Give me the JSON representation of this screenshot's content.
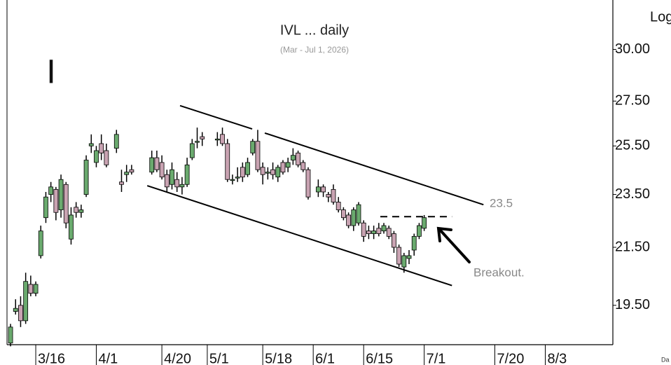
{
  "chart_data": {
    "type": "candlestick",
    "title": "IVL ... daily",
    "subtitle": "(Mar - Jul 1, 2026)",
    "symbol": "I",
    "scale_label": "Log",
    "corner_label": "Da",
    "log_scale": true,
    "up_color": "#6aaa6e",
    "down_color": "#c9a3b2",
    "xlim": [
      -0.7,
      119.4
    ],
    "xticks": [
      {
        "value": 5,
        "label": "3/16"
      },
      {
        "value": 17,
        "label": "4/1"
      },
      {
        "value": 30,
        "label": "4/20"
      },
      {
        "value": 39,
        "label": "5/1"
      },
      {
        "value": 50,
        "label": "5/18"
      },
      {
        "value": 60,
        "label": "6/1"
      },
      {
        "value": 70,
        "label": "6/15"
      },
      {
        "value": 82,
        "label": "7/1"
      },
      {
        "value": 96,
        "label": "7/20"
      },
      {
        "value": 106,
        "label": "8/3"
      }
    ],
    "ylim": [
      18.25,
      32.6
    ],
    "yticks": [
      {
        "value": 19.5,
        "label": "19.50"
      },
      {
        "value": 21.5,
        "label": "21.50"
      },
      {
        "value": 23.5,
        "label": "23.50"
      },
      {
        "value": 25.5,
        "label": "25.50"
      },
      {
        "value": 27.5,
        "label": "27.50"
      },
      {
        "value": 30,
        "label": "30.00"
      }
    ],
    "x": [
      0,
      1,
      2,
      3,
      4,
      5,
      6,
      7,
      8,
      9,
      10,
      11,
      12,
      13,
      14,
      15,
      16,
      17,
      18,
      19,
      21,
      22,
      23,
      24,
      28,
      29,
      30,
      31,
      32,
      33,
      34,
      35,
      36,
      37,
      38,
      41,
      42,
      43,
      44,
      45,
      46,
      47,
      48,
      49,
      50,
      51,
      52,
      53,
      54,
      55,
      56,
      57,
      58,
      59,
      61,
      62,
      63,
      64,
      65,
      66,
      67,
      68,
      69,
      70,
      71,
      72,
      73,
      74,
      75,
      76,
      77,
      78,
      79,
      80,
      81,
      82
    ],
    "open": [
      18.3,
      19.3,
      19.5,
      19.0,
      20.2,
      19.9,
      21.2,
      22.6,
      23.5,
      23.7,
      22.9,
      23.9,
      21.8,
      23.0,
      22.8,
      23.5,
      25.5,
      24.8,
      25.6,
      25.3,
      25.4,
      24.0,
      24.3,
      24.5,
      24.4,
      25.0,
      24.8,
      24.3,
      23.9,
      24.1,
      23.8,
      23.9,
      25.0,
      25.7,
      25.9,
      25.8,
      26.0,
      25.6,
      24.1,
      24.2,
      24.6,
      24.3,
      25.2,
      25.7,
      24.6,
      24.4,
      24.5,
      24.2,
      24.8,
      24.6,
      24.9,
      25.2,
      24.8,
      24.5,
      23.6,
      23.8,
      23.5,
      23.7,
      23.2,
      22.9,
      22.7,
      22.3,
      22.4,
      22.4,
      22.1,
      22.0,
      22.2,
      22.1,
      22.2,
      22.0,
      21.5,
      20.8,
      21.1,
      21.4,
      21.9,
      22.2
    ],
    "high": [
      18.9,
      19.7,
      19.8,
      20.6,
      20.5,
      20.3,
      22.3,
      23.6,
      24.0,
      23.8,
      24.3,
      24.0,
      23.0,
      23.2,
      23.1,
      25.1,
      26.0,
      25.5,
      26.0,
      25.6,
      26.2,
      24.5,
      24.7,
      24.7,
      25.3,
      25.3,
      25.1,
      24.5,
      24.8,
      24.4,
      24.2,
      25.0,
      25.8,
      26.3,
      26.1,
      26.1,
      26.3,
      25.8,
      24.3,
      24.6,
      24.8,
      25.0,
      25.8,
      26.2,
      24.8,
      24.6,
      24.8,
      24.7,
      24.9,
      25.0,
      25.4,
      25.3,
      24.9,
      24.6,
      24.1,
      23.9,
      23.6,
      23.9,
      23.4,
      23.0,
      22.8,
      23.0,
      23.2,
      22.5,
      22.3,
      22.3,
      22.4,
      22.4,
      22.3,
      22.1,
      21.6,
      21.3,
      21.4,
      22.0,
      22.4,
      22.7
    ],
    "low": [
      18.2,
      19.2,
      18.8,
      18.9,
      19.8,
      19.8,
      21.1,
      22.4,
      23.2,
      22.5,
      22.6,
      22.2,
      21.6,
      22.6,
      22.6,
      23.4,
      25.2,
      24.6,
      24.9,
      24.6,
      25.2,
      23.6,
      24.0,
      24.3,
      24.3,
      24.4,
      24.1,
      23.6,
      23.7,
      23.6,
      23.5,
      23.8,
      24.9,
      25.4,
      25.5,
      25.5,
      25.5,
      24.0,
      23.9,
      24.0,
      24.0,
      24.2,
      25.1,
      24.4,
      23.9,
      24.1,
      24.1,
      24.0,
      24.3,
      24.4,
      24.7,
      24.6,
      24.4,
      23.3,
      23.4,
      23.4,
      23.2,
      23.1,
      22.8,
      22.5,
      22.2,
      22.1,
      22.3,
      21.7,
      21.8,
      21.8,
      21.9,
      22.0,
      21.8,
      21.3,
      20.8,
      20.6,
      20.9,
      21.2,
      21.8,
      22.1
    ],
    "close": [
      18.8,
      19.4,
      19.0,
      20.3,
      19.9,
      20.2,
      22.1,
      23.4,
      23.8,
      22.8,
      24.1,
      22.4,
      22.7,
      22.8,
      22.9,
      24.9,
      25.6,
      25.3,
      25.2,
      24.7,
      26.0,
      23.9,
      24.4,
      24.4,
      25.0,
      24.5,
      24.2,
      23.8,
      24.5,
      23.8,
      23.9,
      24.7,
      25.6,
      25.7,
      25.8,
      25.8,
      25.6,
      24.1,
      24.1,
      24.2,
      24.2,
      24.8,
      25.7,
      24.5,
      24.3,
      24.4,
      24.3,
      24.6,
      24.4,
      24.8,
      25.1,
      24.7,
      24.5,
      23.4,
      23.8,
      23.6,
      23.4,
      23.2,
      22.9,
      22.6,
      22.3,
      22.9,
      23.1,
      21.9,
      22.0,
      22.1,
      22.0,
      22.3,
      21.9,
      21.5,
      20.9,
      21.2,
      21.2,
      21.9,
      22.3,
      22.6
    ],
    "trendlines": [
      {
        "x": [
          33.6,
          47.9
        ],
        "y": [
          27.29,
          26.24
        ],
        "dashed": false
      },
      {
        "x": [
          50.4,
          93.75
        ],
        "y": [
          26.06,
          23.1
        ],
        "dashed": false
      },
      {
        "x": [
          27.1,
          87.5
        ],
        "y": [
          23.85,
          20.16
        ],
        "dashed": false
      },
      {
        "x": [
          73.3,
          87.5
        ],
        "y": [
          22.64,
          22.64
        ],
        "dashed": true
      }
    ],
    "annotations": [
      "23.5",
      "Breakout."
    ]
  }
}
